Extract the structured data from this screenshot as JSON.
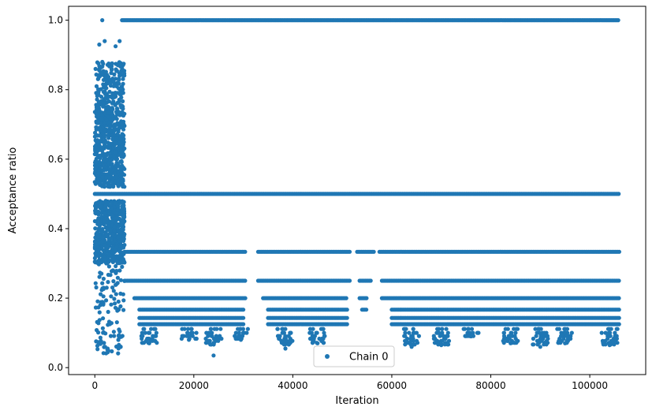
{
  "chart_data": {
    "type": "scatter",
    "title": "",
    "xlabel": "Iteration",
    "ylabel": "Acceptance ratio",
    "xlim": [
      -5300,
      111300
    ],
    "ylim": [
      -0.02,
      1.04
    ],
    "x_ticks": [
      0,
      20000,
      40000,
      60000,
      80000,
      100000
    ],
    "x_tick_labels": [
      "0",
      "20000",
      "40000",
      "60000",
      "80000",
      "100000"
    ],
    "y_ticks": [
      0.0,
      0.2,
      0.4,
      0.6,
      0.8,
      1.0
    ],
    "y_tick_labels": [
      "0.0",
      "0.2",
      "0.4",
      "0.6",
      "0.8",
      "1.0"
    ],
    "grid": false,
    "legend_position": "bottom-center",
    "marker_color": "#1f77b4",
    "series": [
      {
        "name": "Chain 0",
        "levels": [
          {
            "y": 1.0,
            "x_ranges": [
              [
                5500,
                106000
              ]
            ]
          },
          {
            "y": 0.5,
            "x_ranges": [
              [
                0,
                106000
              ]
            ]
          },
          {
            "y": 0.3333,
            "x_ranges": [
              [
                6000,
                30500
              ],
              [
                33000,
                51500
              ],
              [
                53000,
                56500
              ],
              [
                57500,
                106000
              ]
            ]
          },
          {
            "y": 0.25,
            "x_ranges": [
              [
                6000,
                30500
              ],
              [
                33000,
                51500
              ],
              [
                53500,
                56000
              ],
              [
                58000,
                106000
              ]
            ]
          },
          {
            "y": 0.2,
            "x_ranges": [
              [
                8000,
                30500
              ],
              [
                34000,
                51000
              ],
              [
                53500,
                55000
              ],
              [
                58000,
                106000
              ]
            ]
          },
          {
            "y": 0.1667,
            "x_ranges": [
              [
                9000,
                30000
              ],
              [
                35000,
                51000
              ],
              [
                54000,
                55000
              ],
              [
                60000,
                106000
              ]
            ]
          },
          {
            "y": 0.1429,
            "x_ranges": [
              [
                9000,
                30000
              ],
              [
                35000,
                51000
              ],
              [
                60000,
                106000
              ]
            ]
          },
          {
            "y": 0.125,
            "x_ranges": [
              [
                9000,
                30000
              ],
              [
                35000,
                51000
              ],
              [
                60000,
                106000
              ]
            ]
          }
        ],
        "early_phase": {
          "x_range": [
            0,
            6000
          ],
          "y_range": [
            0.04,
            0.94
          ]
        },
        "sparse_tails": [
          {
            "x_center": 11000,
            "y_min": 0.07
          },
          {
            "x_center": 19000,
            "y_min": 0.08
          },
          {
            "x_center": 24000,
            "y_min": 0.035
          },
          {
            "x_center": 29500,
            "y_min": 0.08
          },
          {
            "x_center": 38500,
            "y_min": 0.055
          },
          {
            "x_center": 45000,
            "y_min": 0.07
          },
          {
            "x_center": 64000,
            "y_min": 0.06
          },
          {
            "x_center": 70000,
            "y_min": 0.065
          },
          {
            "x_center": 76000,
            "y_min": 0.09
          },
          {
            "x_center": 84000,
            "y_min": 0.07
          },
          {
            "x_center": 90000,
            "y_min": 0.06
          },
          {
            "x_center": 95000,
            "y_min": 0.07
          },
          {
            "x_center": 104000,
            "y_min": 0.065
          }
        ]
      }
    ]
  }
}
